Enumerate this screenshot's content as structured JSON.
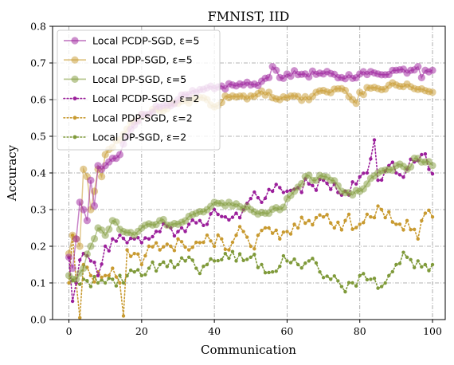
{
  "chart_data": {
    "type": "line",
    "title": "FMNIST, IID",
    "xlabel": "Communication",
    "ylabel": "Accuracy",
    "xlim": [
      -4.5,
      103.5
    ],
    "ylim": [
      0.0,
      0.8
    ],
    "xticks": [
      0,
      20,
      40,
      60,
      80,
      100
    ],
    "yticks": [
      0.0,
      0.1,
      0.2,
      0.3,
      0.4,
      0.5,
      0.6,
      0.7,
      0.8
    ],
    "xtick_labels": [
      "0",
      "20",
      "40",
      "60",
      "80",
      "100"
    ],
    "ytick_labels": [
      "0.0",
      "0.1",
      "0.2",
      "0.3",
      "0.4",
      "0.5",
      "0.6",
      "0.7",
      "0.8"
    ],
    "grid": true,
    "legend_position": "upper-left",
    "colors": {
      "pcdp": "#9b1f9b",
      "pdp": "#c89a30",
      "dp": "#7f9a3a"
    },
    "series": [
      {
        "name": "Local PCDP-SGD, ε=5",
        "color": "#9b1f9b",
        "style": "solid-marker",
        "anchors": [
          [
            0,
            0.17
          ],
          [
            1,
            0.14
          ],
          [
            2,
            0.22
          ],
          [
            3,
            0.32
          ],
          [
            4,
            0.3
          ],
          [
            5,
            0.27
          ],
          [
            6,
            0.38
          ],
          [
            7,
            0.31
          ],
          [
            8,
            0.42
          ],
          [
            9,
            0.41
          ],
          [
            10,
            0.42
          ],
          [
            11,
            0.43
          ],
          [
            12,
            0.44
          ],
          [
            13,
            0.44
          ],
          [
            14,
            0.45
          ],
          [
            16,
            0.5
          ],
          [
            18,
            0.53
          ],
          [
            20,
            0.56
          ],
          [
            25,
            0.58
          ],
          [
            30,
            0.6
          ],
          [
            35,
            0.62
          ],
          [
            40,
            0.63
          ],
          [
            45,
            0.64
          ],
          [
            50,
            0.64
          ],
          [
            53,
            0.65
          ],
          [
            55,
            0.66
          ],
          [
            56,
            0.69
          ],
          [
            57,
            0.68
          ],
          [
            58,
            0.66
          ],
          [
            60,
            0.67
          ],
          [
            65,
            0.67
          ],
          [
            70,
            0.67
          ],
          [
            75,
            0.66
          ],
          [
            80,
            0.67
          ],
          [
            85,
            0.67
          ],
          [
            90,
            0.68
          ],
          [
            94,
            0.68
          ],
          [
            96,
            0.69
          ],
          [
            97,
            0.66
          ],
          [
            98,
            0.68
          ],
          [
            100,
            0.68
          ]
        ]
      },
      {
        "name": "Local PDP-SGD, ε=5",
        "color": "#c89a30",
        "style": "solid-marker",
        "anchors": [
          [
            0,
            0.18
          ],
          [
            1,
            0.23
          ],
          [
            2,
            0.22
          ],
          [
            3,
            0.2
          ],
          [
            4,
            0.41
          ],
          [
            5,
            0.39
          ],
          [
            6,
            0.3
          ],
          [
            7,
            0.35
          ],
          [
            8,
            0.41
          ],
          [
            9,
            0.39
          ],
          [
            10,
            0.45
          ],
          [
            12,
            0.47
          ],
          [
            14,
            0.49
          ],
          [
            16,
            0.52
          ],
          [
            18,
            0.54
          ],
          [
            20,
            0.56
          ],
          [
            25,
            0.57
          ],
          [
            30,
            0.59
          ],
          [
            35,
            0.6
          ],
          [
            38,
            0.6
          ],
          [
            40,
            0.58
          ],
          [
            43,
            0.61
          ],
          [
            45,
            0.61
          ],
          [
            50,
            0.61
          ],
          [
            55,
            0.62
          ],
          [
            58,
            0.6
          ],
          [
            62,
            0.61
          ],
          [
            66,
            0.6
          ],
          [
            68,
            0.62
          ],
          [
            75,
            0.63
          ],
          [
            78,
            0.6
          ],
          [
            79,
            0.59
          ],
          [
            80,
            0.62
          ],
          [
            85,
            0.63
          ],
          [
            90,
            0.64
          ],
          [
            95,
            0.63
          ],
          [
            100,
            0.62
          ]
        ]
      },
      {
        "name": "Local DP-SGD, ε=5",
        "color": "#7f9a3a",
        "style": "solid-marker",
        "anchors": [
          [
            0,
            0.12
          ],
          [
            2,
            0.11
          ],
          [
            4,
            0.14
          ],
          [
            6,
            0.2
          ],
          [
            8,
            0.25
          ],
          [
            10,
            0.23
          ],
          [
            12,
            0.27
          ],
          [
            15,
            0.24
          ],
          [
            18,
            0.23
          ],
          [
            20,
            0.25
          ],
          [
            25,
            0.27
          ],
          [
            30,
            0.26
          ],
          [
            35,
            0.29
          ],
          [
            38,
            0.3
          ],
          [
            40,
            0.32
          ],
          [
            45,
            0.31
          ],
          [
            50,
            0.3
          ],
          [
            55,
            0.29
          ],
          [
            58,
            0.3
          ],
          [
            60,
            0.33
          ],
          [
            62,
            0.35
          ],
          [
            65,
            0.39
          ],
          [
            68,
            0.38
          ],
          [
            70,
            0.39
          ],
          [
            72,
            0.38
          ],
          [
            75,
            0.35
          ],
          [
            78,
            0.34
          ],
          [
            80,
            0.35
          ],
          [
            82,
            0.37
          ],
          [
            85,
            0.4
          ],
          [
            88,
            0.41
          ],
          [
            90,
            0.42
          ],
          [
            93,
            0.41
          ],
          [
            95,
            0.44
          ],
          [
            98,
            0.43
          ],
          [
            100,
            0.42
          ]
        ]
      },
      {
        "name": "Local PCDP-SGD, ε=2",
        "color": "#9b1f9b",
        "style": "dotted",
        "anchors": [
          [
            0,
            0.17
          ],
          [
            1,
            0.05
          ],
          [
            2,
            0.1
          ],
          [
            4,
            0.18
          ],
          [
            6,
            0.16
          ],
          [
            8,
            0.12
          ],
          [
            10,
            0.2
          ],
          [
            12,
            0.22
          ],
          [
            14,
            0.23
          ],
          [
            16,
            0.21
          ],
          [
            18,
            0.22
          ],
          [
            20,
            0.21
          ],
          [
            22,
            0.22
          ],
          [
            25,
            0.24
          ],
          [
            28,
            0.25
          ],
          [
            30,
            0.24
          ],
          [
            33,
            0.26
          ],
          [
            36,
            0.27
          ],
          [
            38,
            0.26
          ],
          [
            40,
            0.3
          ],
          [
            43,
            0.28
          ],
          [
            46,
            0.29
          ],
          [
            48,
            0.3
          ],
          [
            50,
            0.33
          ],
          [
            53,
            0.32
          ],
          [
            56,
            0.35
          ],
          [
            58,
            0.36
          ],
          [
            60,
            0.35
          ],
          [
            63,
            0.36
          ],
          [
            66,
            0.37
          ],
          [
            70,
            0.38
          ],
          [
            73,
            0.37
          ],
          [
            76,
            0.35
          ],
          [
            79,
            0.37
          ],
          [
            82,
            0.4
          ],
          [
            84,
            0.49
          ],
          [
            85,
            0.38
          ],
          [
            88,
            0.42
          ],
          [
            90,
            0.4
          ],
          [
            93,
            0.41
          ],
          [
            95,
            0.43
          ],
          [
            97,
            0.45
          ],
          [
            99,
            0.41
          ]
        ]
      },
      {
        "name": "Local PDP-SGD, ε=2",
        "color": "#c89a30",
        "style": "dotted",
        "anchors": [
          [
            0,
            0.1
          ],
          [
            1,
            0.23
          ],
          [
            2,
            0.1
          ],
          [
            3,
            0.0
          ],
          [
            4,
            0.15
          ],
          [
            6,
            0.12
          ],
          [
            8,
            0.13
          ],
          [
            10,
            0.12
          ],
          [
            12,
            0.14
          ],
          [
            14,
            0.1
          ],
          [
            15,
            0.01
          ],
          [
            16,
            0.19
          ],
          [
            18,
            0.18
          ],
          [
            20,
            0.15
          ],
          [
            22,
            0.2
          ],
          [
            25,
            0.19
          ],
          [
            28,
            0.2
          ],
          [
            30,
            0.22
          ],
          [
            33,
            0.19
          ],
          [
            36,
            0.21
          ],
          [
            38,
            0.23
          ],
          [
            40,
            0.2
          ],
          [
            42,
            0.22
          ],
          [
            44,
            0.19
          ],
          [
            46,
            0.23
          ],
          [
            48,
            0.24
          ],
          [
            50,
            0.2
          ],
          [
            52,
            0.23
          ],
          [
            55,
            0.25
          ],
          [
            58,
            0.22
          ],
          [
            60,
            0.24
          ],
          [
            63,
            0.25
          ],
          [
            66,
            0.27
          ],
          [
            70,
            0.28
          ],
          [
            73,
            0.25
          ],
          [
            76,
            0.27
          ],
          [
            80,
            0.26
          ],
          [
            83,
            0.28
          ],
          [
            86,
            0.3
          ],
          [
            90,
            0.26
          ],
          [
            93,
            0.27
          ],
          [
            96,
            0.22
          ],
          [
            98,
            0.29
          ],
          [
            100,
            0.28
          ]
        ]
      },
      {
        "name": "Local DP-SGD, ε=2",
        "color": "#7f9a3a",
        "style": "dotted",
        "anchors": [
          [
            0,
            0.1
          ],
          [
            2,
            0.1
          ],
          [
            4,
            0.11
          ],
          [
            6,
            0.09
          ],
          [
            8,
            0.1
          ],
          [
            10,
            0.1
          ],
          [
            12,
            0.11
          ],
          [
            15,
            0.1
          ],
          [
            18,
            0.13
          ],
          [
            20,
            0.12
          ],
          [
            22,
            0.14
          ],
          [
            25,
            0.15
          ],
          [
            28,
            0.16
          ],
          [
            30,
            0.15
          ],
          [
            32,
            0.16
          ],
          [
            35,
            0.14
          ],
          [
            38,
            0.15
          ],
          [
            40,
            0.16
          ],
          [
            43,
            0.18
          ],
          [
            46,
            0.16
          ],
          [
            50,
            0.17
          ],
          [
            53,
            0.15
          ],
          [
            56,
            0.13
          ],
          [
            60,
            0.16
          ],
          [
            63,
            0.15
          ],
          [
            66,
            0.16
          ],
          [
            69,
            0.13
          ],
          [
            72,
            0.11
          ],
          [
            75,
            0.09
          ],
          [
            78,
            0.1
          ],
          [
            80,
            0.12
          ],
          [
            83,
            0.11
          ],
          [
            86,
            0.09
          ],
          [
            88,
            0.12
          ],
          [
            90,
            0.15
          ],
          [
            93,
            0.17
          ],
          [
            96,
            0.16
          ],
          [
            98,
            0.15
          ],
          [
            100,
            0.15
          ]
        ]
      }
    ]
  }
}
